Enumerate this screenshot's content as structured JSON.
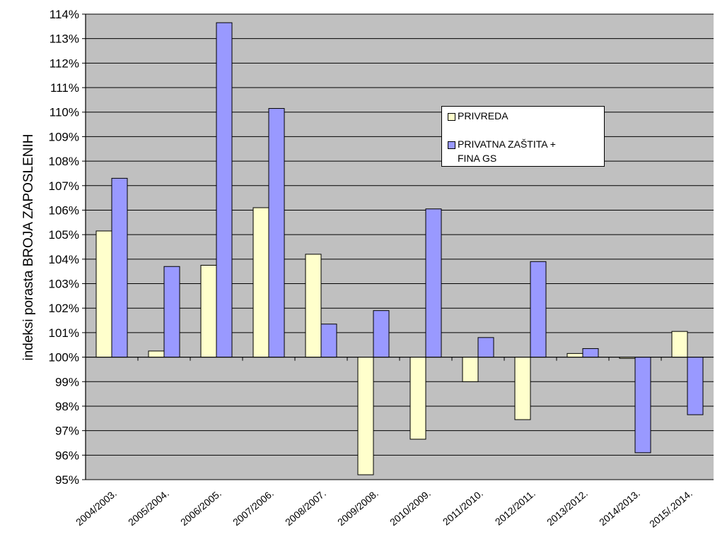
{
  "chart_data": {
    "type": "bar",
    "title": "",
    "xlabel": "",
    "ylabel": "indeksi porasta BROJA ZAPOSLENIH",
    "categories": [
      "2004/2003.",
      "2005/2004.",
      "2006/2005.",
      "2007/2006.",
      "2008/2007.",
      "2009/2008.",
      "2010/2009.",
      "2011/2010.",
      "2012/2011.",
      "2013/2012.",
      "2014/2013.",
      "2015/.2014."
    ],
    "series": [
      {
        "name": "PRIVREDA",
        "color": "#ffffcc",
        "values": [
          105.15,
          100.25,
          103.75,
          106.1,
          104.2,
          95.2,
          96.65,
          99.0,
          97.45,
          100.15,
          99.95,
          101.05
        ]
      },
      {
        "name": "PRIVATNA ZAŠTITA + FINA GS",
        "color": "#9999ff",
        "values": [
          107.3,
          103.7,
          113.65,
          110.15,
          101.35,
          101.9,
          106.05,
          100.8,
          103.9,
          100.35,
          96.1,
          97.65
        ]
      }
    ],
    "baseline": 100,
    "ylim": [
      95,
      114
    ],
    "yticks": [
      "95%",
      "96%",
      "97%",
      "98%",
      "99%",
      "100%",
      "101%",
      "102%",
      "103%",
      "104%",
      "105%",
      "106%",
      "107%",
      "108%",
      "109%",
      "110%",
      "111%",
      "112%",
      "113%",
      "114%"
    ],
    "grid": true,
    "plot_background": "#c0c0c0",
    "legend": {
      "position": "top-right",
      "labels": [
        "PRIVREDA",
        "PRIVATNA ZAŠTITA +",
        "FINA GS"
      ]
    }
  }
}
